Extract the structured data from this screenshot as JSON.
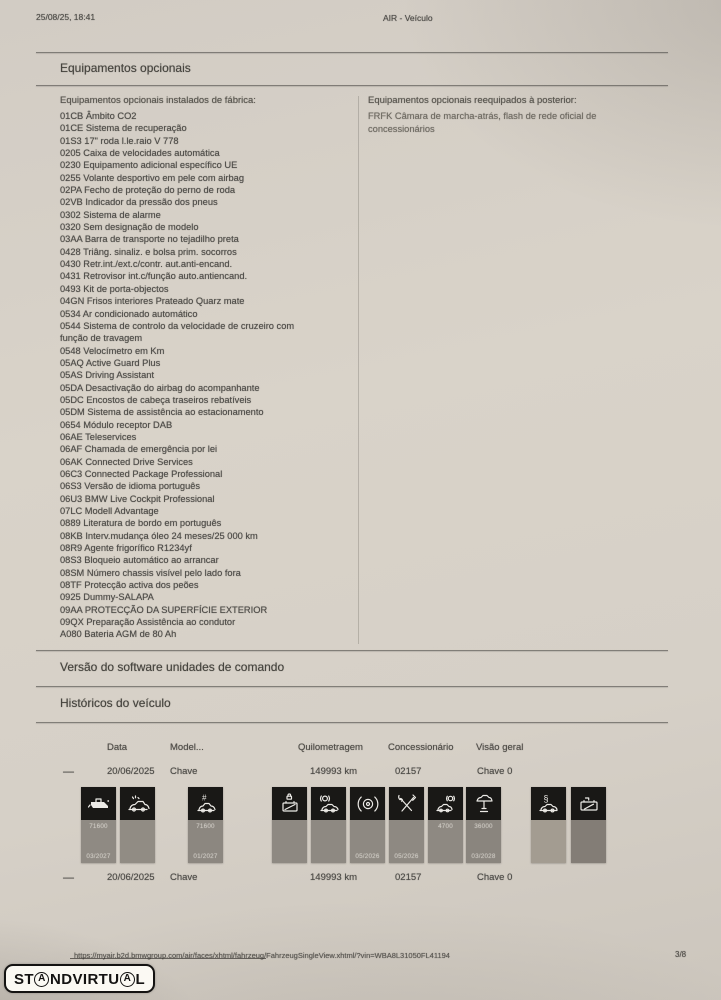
{
  "page": {
    "printed_date": "25/08/25, 18:41",
    "doc_title": "AIR - Veículo",
    "footer_url": "https://myair.b2d.bmwgroup.com/air/faces/xhtml/fahrzeug/FahrzeugSingleView.xhtml/?vin=WBA8L31050FL41194",
    "page_number": "3/8",
    "watermark": "STANDVIRTUAL"
  },
  "optional_equipment": {
    "section_title": "Equipamentos opcionais",
    "factory_heading": "Equipamentos opcionais instalados de fábrica:",
    "factory_items": [
      "01CB Âmbito CO2",
      "01CE Sistema de recuperação",
      "01S3 17\" roda l.le.raio V 778",
      "0205 Caixa de velocidades automática",
      "0230 Equipamento adicional específico UE",
      "0255 Volante desportivo em pele com airbag",
      "02PA Fecho de proteção do perno de roda",
      "02VB Indicador da pressão dos pneus",
      "0302 Sistema de alarme",
      "0320 Sem designação de modelo",
      "03AA Barra de transporte no tejadilho preta",
      "0428 Triâng. sinaliz. e bolsa prim. socorros",
      "0430 Retr.int./ext.c/contr. aut.anti-encand.",
      "0431 Retrovisor int.c/função auto.antiencand.",
      "0493 Kit de porta-objectos",
      "04GN Frisos interiores Prateado Quarz mate",
      "0534 Ar condicionado automático",
      "0544 Sistema de controlo da velocidade de cruzeiro com função de travagem",
      "0548 Velocímetro em Km",
      "05AQ Active Guard Plus",
      "05AS Driving Assistant",
      "05DA Desactivação do airbag do acompanhante",
      "05DC Encostos de cabeça traseiros rebatíveis",
      "05DM Sistema de assistência ao estacionamento",
      "0654 Módulo receptor DAB",
      "06AE Teleservices",
      "06AF Chamada de emergência por lei",
      "06AK Connected Drive Services",
      "06C3 Connected Package Professional",
      "06S3 Versão de idioma português",
      "06U3 BMW Live Cockpit Professional",
      "07LC Modell Advantage",
      "0889 Literatura de bordo em português",
      "08KB Interv.mudança óleo 24 meses/25 000 km",
      "08R9 Agente frigorífico R1234yf",
      "08S3 Bloqueio automático ao arrancar",
      "08SM Número chassis visível pelo lado fora",
      "08TF Protecção activa dos peões",
      "0925 Dummy-SALAPA",
      "09AA PROTECÇÃO DA SUPERFÍCIE EXTERIOR",
      "09QX Preparação Assistência ao condutor",
      "A080 Bateria AGM de 80 Ah"
    ],
    "retrofit_heading": "Equipamentos opcionais reequipados à posterior:",
    "retrofit_items": [
      "FRFK Câmara de marcha-atrás, flash de rede oficial de concessionários"
    ]
  },
  "software_section": {
    "title": "Versão do software unidades de comando"
  },
  "history": {
    "title": "Históricos do veículo",
    "columns": [
      "Data",
      "Model...",
      "Quilometragem",
      "Concessionário",
      "Visão geral"
    ],
    "rows": [
      {
        "expander": "—",
        "date": "20/06/2025",
        "model": "Chave",
        "mileage": "149993 km",
        "dealer": "02157",
        "overview": "Chave 0"
      },
      {
        "expander": "—",
        "date": "20/06/2025",
        "model": "Chave",
        "mileage": "149993 km",
        "dealer": "02157",
        "overview": "Chave 0"
      }
    ],
    "service_tiles": [
      {
        "icon": "oil-can-icon",
        "line1": "71600",
        "line2": "03/2027",
        "shade": "#8f8a83"
      },
      {
        "icon": "car-sparkle-icon",
        "line1": "",
        "line2": "",
        "shade": "#918c84"
      },
      {
        "icon": "car-grid-icon",
        "line1": "71600",
        "line2": "01/2027",
        "shade": "#8c8780"
      },
      {
        "icon": "battery-lock-icon",
        "line1": "",
        "line2": "",
        "shade": "#8e8982"
      },
      {
        "icon": "brake-warning-car-icon",
        "line1": "",
        "line2": "",
        "shade": "#8e8982"
      },
      {
        "icon": "brake-disc-icon",
        "line1": "",
        "line2": "05/2026",
        "shade": "#8e8982"
      },
      {
        "icon": "service-tools-icon",
        "line1": "",
        "line2": "05/2026",
        "shade": "#8e8982"
      },
      {
        "icon": "car-brake-fluid-icon",
        "line1": "4700",
        "line2": "",
        "shade": "#8e8982"
      },
      {
        "icon": "car-lift-icon",
        "line1": "36000",
        "line2": "03/2028",
        "shade": "#8a857e"
      },
      {
        "icon": "car-law-icon",
        "line1": "",
        "line2": "",
        "shade": "#a39c91"
      },
      {
        "icon": "battery-flag-icon",
        "line1": "",
        "line2": "",
        "shade": "#837d76"
      }
    ]
  }
}
